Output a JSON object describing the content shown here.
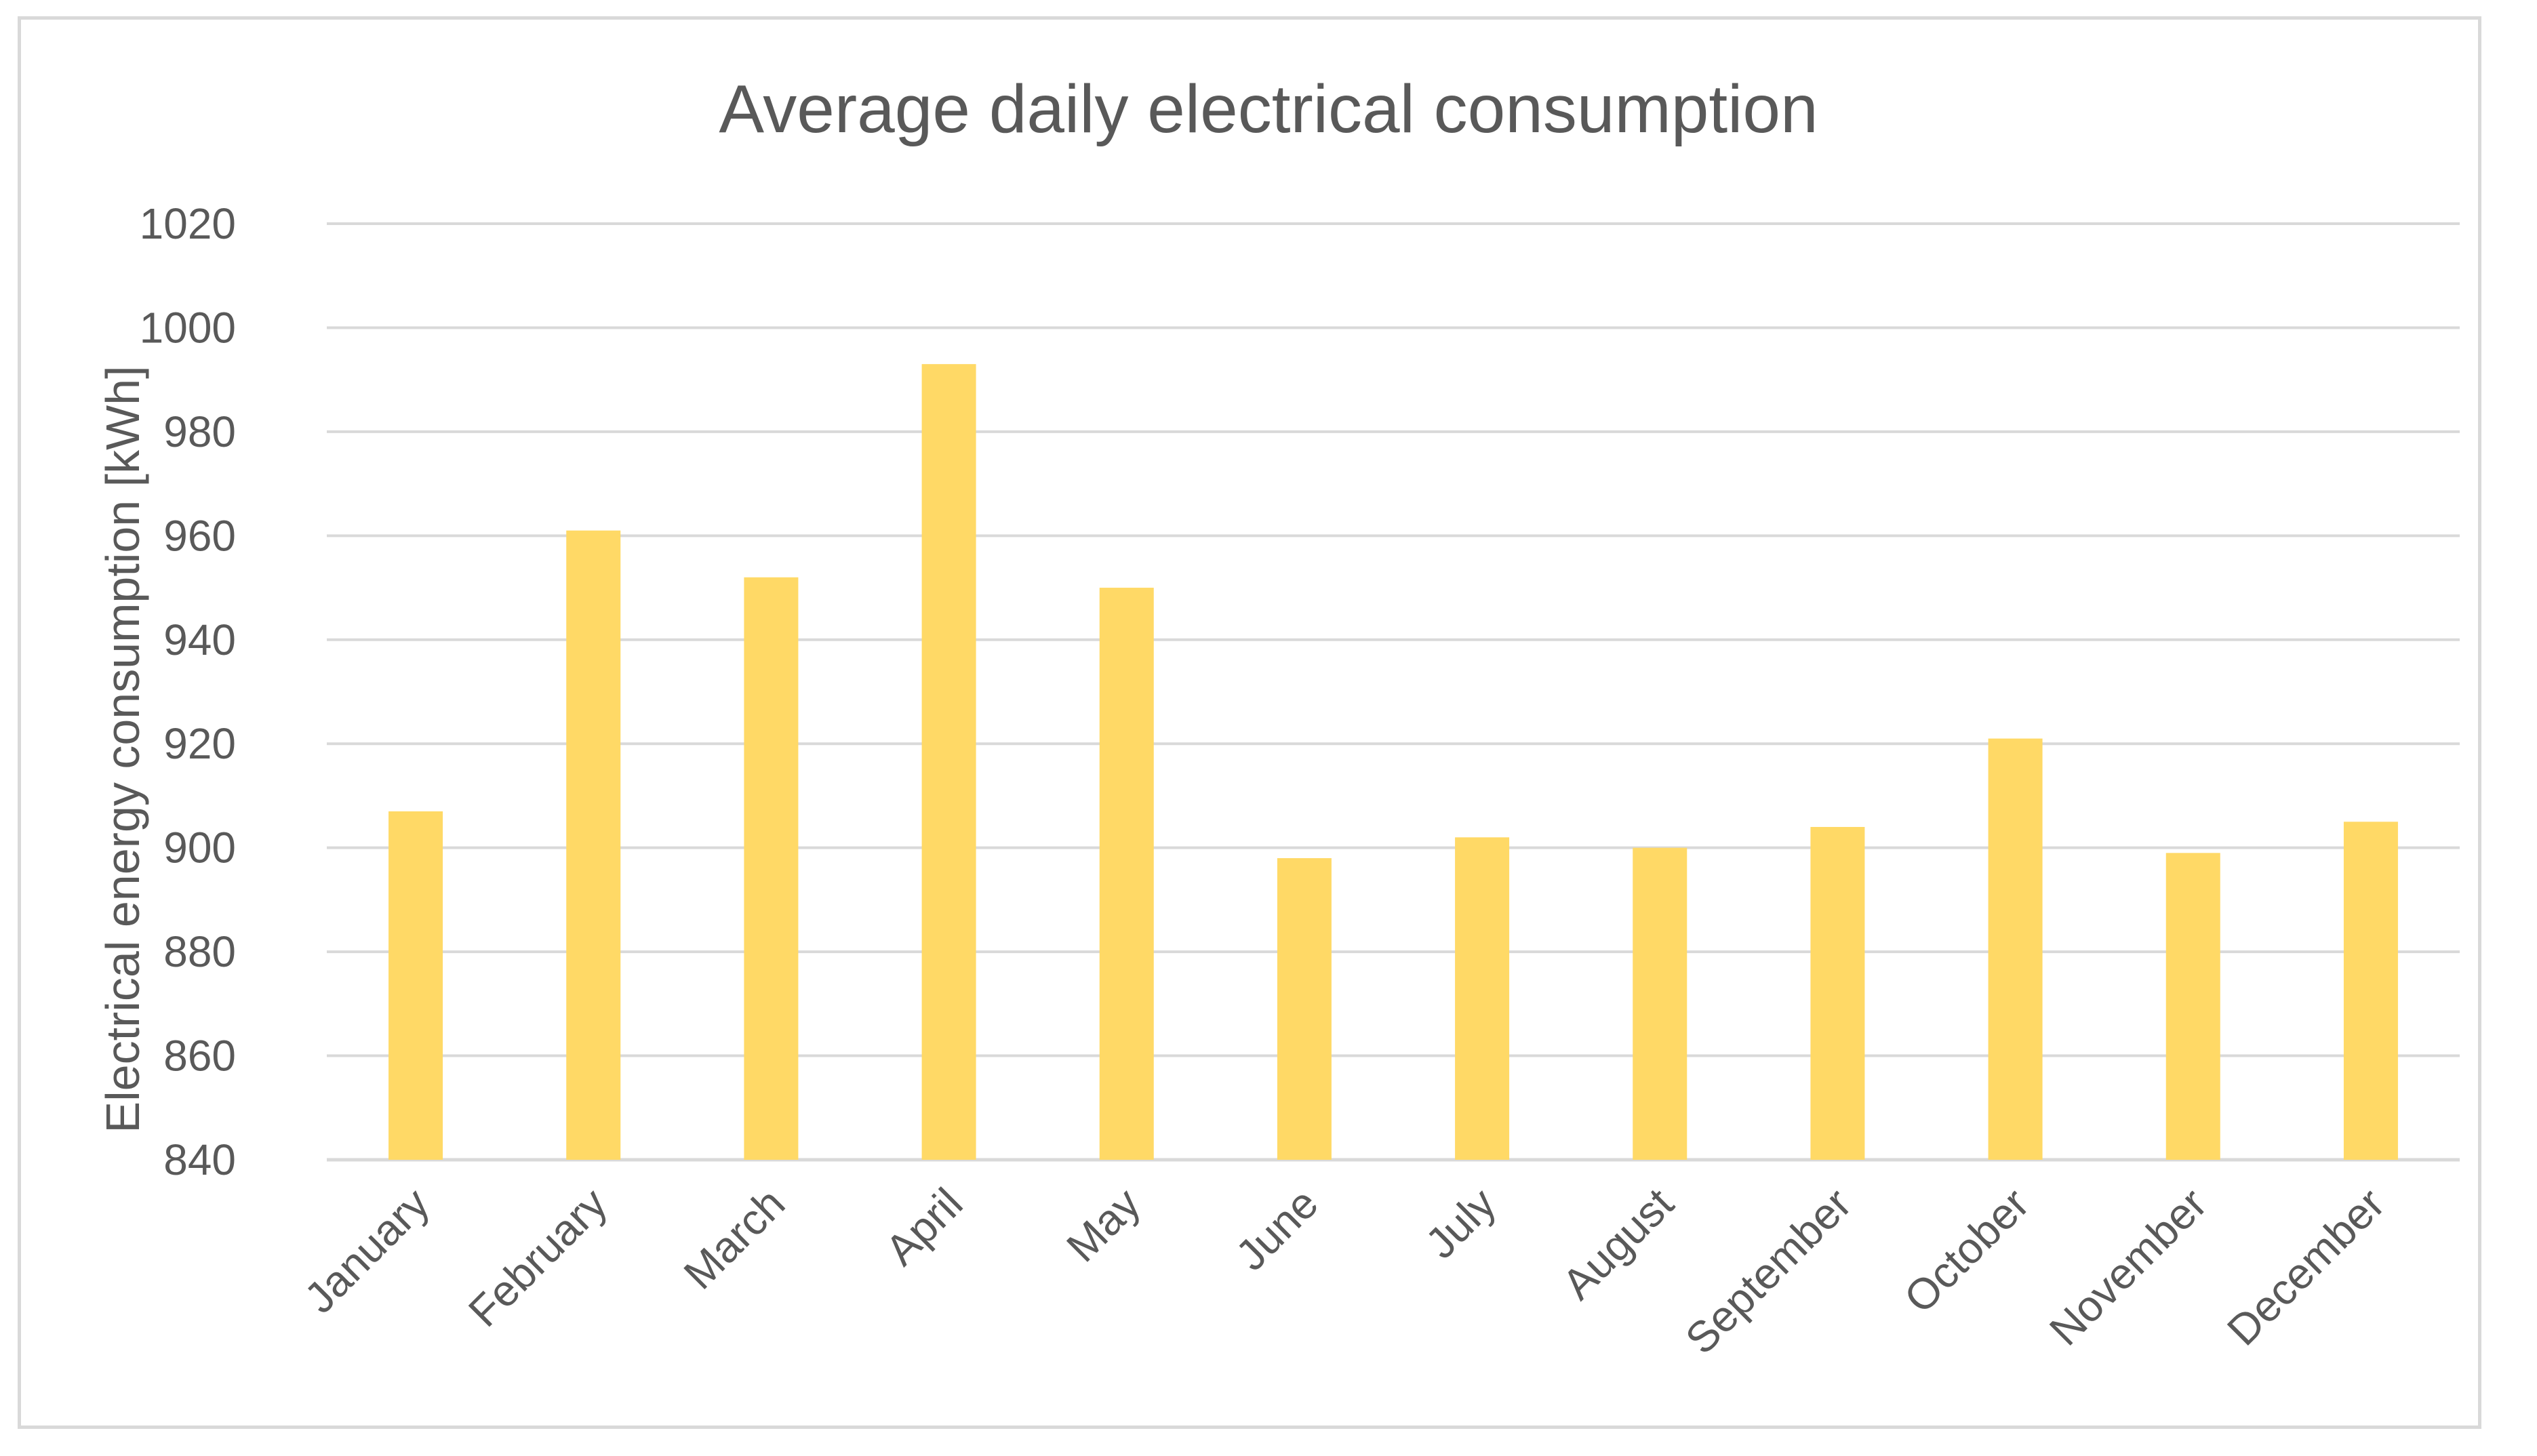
{
  "chart_data": {
    "type": "bar",
    "title": "Average daily electrical consumption",
    "xlabel": "",
    "ylabel": "Electrical energy consumption [kWh]",
    "ylim": [
      840,
      1020
    ],
    "yticks": [
      840,
      860,
      880,
      900,
      920,
      940,
      960,
      980,
      1000,
      1020
    ],
    "grid": true,
    "legend": "none",
    "bar_color": "#FFD966",
    "categories": [
      "January",
      "February",
      "March",
      "April",
      "May",
      "June",
      "July",
      "August",
      "September",
      "October",
      "November",
      "December"
    ],
    "values": [
      907,
      961,
      952,
      993,
      950,
      898,
      902,
      900,
      904,
      921,
      899,
      905
    ]
  }
}
